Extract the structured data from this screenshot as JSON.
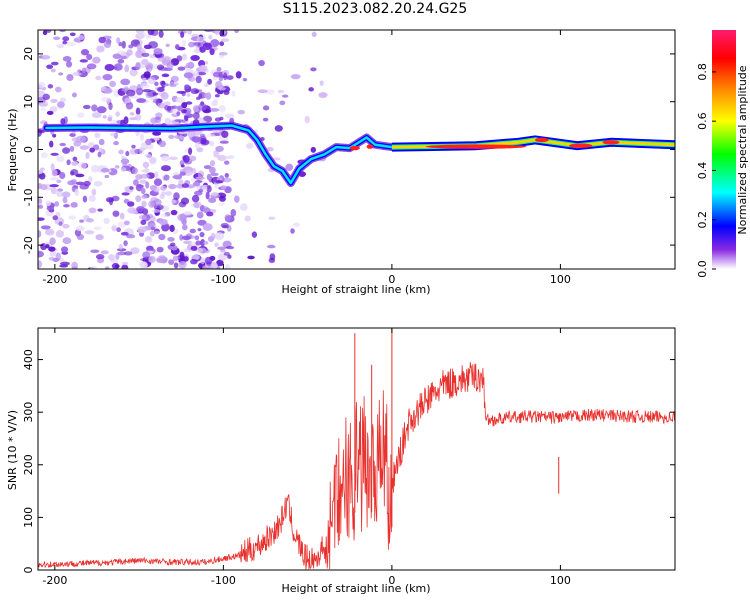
{
  "title": "S115.2023.082.20.24.G25",
  "chart_data": [
    {
      "type": "heatmap",
      "xlabel": "Height of straight line (km)",
      "ylabel": "Frequency (Hz)",
      "xlim": [
        -210,
        168
      ],
      "ylim": [
        -25,
        25
      ],
      "xticks": [
        -200,
        -100,
        0,
        100
      ],
      "yticks": [
        -20,
        -10,
        0,
        10,
        20
      ],
      "colorbar": {
        "label": "Normalized spectral amplitude",
        "range": [
          0,
          0.97
        ],
        "ticks": [
          0.0,
          0.2,
          0.4,
          0.6,
          0.8
        ],
        "colormap": "rainbow",
        "stops": [
          "#ffffff",
          "#6a00ff",
          "#0000ff",
          "#00ffff",
          "#00ff00",
          "#ffff00",
          "#ff8000",
          "#ff0000",
          "#ff0080"
        ]
      },
      "ridge": [
        {
          "x": -205,
          "y": 4.5
        },
        {
          "x": -180,
          "y": 4.6
        },
        {
          "x": -155,
          "y": 4.5
        },
        {
          "x": -130,
          "y": 4.4
        },
        {
          "x": -110,
          "y": 4.8
        },
        {
          "x": -95,
          "y": 5.0
        },
        {
          "x": -85,
          "y": 4.0
        },
        {
          "x": -80,
          "y": 2.0
        },
        {
          "x": -75,
          "y": -1.0
        },
        {
          "x": -70,
          "y": -3.5
        },
        {
          "x": -65,
          "y": -4.5
        },
        {
          "x": -60,
          "y": -7.0
        },
        {
          "x": -55,
          "y": -4.0
        },
        {
          "x": -48,
          "y": -2.0
        },
        {
          "x": -40,
          "y": -1.0
        },
        {
          "x": -33,
          "y": 0.5
        },
        {
          "x": -25,
          "y": 0.3
        },
        {
          "x": -15,
          "y": 2.5
        },
        {
          "x": -10,
          "y": 1.0
        },
        {
          "x": 0,
          "y": 0.5
        },
        {
          "x": 20,
          "y": 0.6
        },
        {
          "x": 50,
          "y": 0.8
        },
        {
          "x": 75,
          "y": 1.5
        },
        {
          "x": 85,
          "y": 2.0
        },
        {
          "x": 110,
          "y": 0.8
        },
        {
          "x": 130,
          "y": 1.5
        },
        {
          "x": 168,
          "y": 1.0
        }
      ]
    },
    {
      "type": "line",
      "xlabel": "Height of straight line (km)",
      "ylabel": "SNR (10 * V/V)",
      "xlim": [
        -210,
        168
      ],
      "ylim": [
        0,
        460
      ],
      "xticks": [
        -200,
        -100,
        0,
        100
      ],
      "yticks": [
        0,
        100,
        200,
        300,
        400
      ],
      "color": "#e8302c",
      "x": [
        -210,
        -190,
        -170,
        -150,
        -130,
        -110,
        -100,
        -90,
        -80,
        -72,
        -66,
        -62,
        -58,
        -52,
        -45,
        -38,
        -32,
        -28,
        -24,
        -20,
        -15,
        -10,
        -5,
        -1,
        3,
        10,
        20,
        30,
        40,
        50,
        54,
        56,
        60,
        70,
        80,
        95,
        100,
        120,
        140,
        168
      ],
      "y": [
        10,
        12,
        14,
        18,
        15,
        15,
        22,
        28,
        45,
        65,
        90,
        130,
        70,
        25,
        20,
        60,
        150,
        200,
        220,
        215,
        250,
        200,
        265,
        150,
        200,
        280,
        320,
        350,
        360,
        368,
        365,
        285,
        285,
        290,
        292,
        290,
        290,
        295,
        292,
        290
      ],
      "spikes": [
        {
          "x": -22,
          "y": 450
        },
        {
          "x": -12,
          "y": 390
        },
        {
          "x": 0,
          "y": 460
        },
        {
          "x": 99,
          "y": 215
        }
      ]
    }
  ]
}
